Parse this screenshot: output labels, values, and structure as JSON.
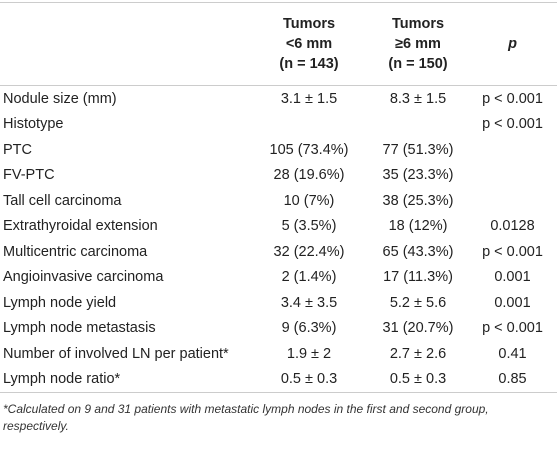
{
  "table": {
    "header": [
      null,
      [
        "Tumors",
        "<6 mm",
        "(n = 143)"
      ],
      [
        "Tumors",
        "≥6 mm",
        "(n = 150)"
      ],
      [
        "p"
      ]
    ],
    "rows": [
      [
        "Nodule size (mm)",
        "3.1 ± 1.5",
        "8.3 ± 1.5",
        "p < 0.001"
      ],
      [
        "Histotype",
        null,
        null,
        "p < 0.001"
      ],
      [
        "PTC",
        "105 (73.4%)",
        "77 (51.3%)",
        null
      ],
      [
        "FV-PTC",
        "28 (19.6%)",
        "35 (23.3%)",
        null
      ],
      [
        "Tall cell carcinoma",
        "10 (7%)",
        "38 (25.3%)",
        null
      ],
      [
        "Extrathyroidal extension",
        "5 (3.5%)",
        "18 (12%)",
        "0.0128"
      ],
      [
        "Multicentric carcinoma",
        "32 (22.4%)",
        "65 (43.3%)",
        "p < 0.001"
      ],
      [
        "Angioinvasive carcinoma",
        "2 (1.4%)",
        "17 (11.3%)",
        "0.001"
      ],
      [
        "Lymph node yield",
        "3.4 ± 3.5",
        "5.2 ± 5.6",
        "0.001"
      ],
      [
        "Lymph node metastasis",
        "9 (6.3%)",
        "31 (20.7%)",
        "p < 0.001"
      ],
      [
        "Number of involved LN per patient*",
        "1.9 ± 2",
        "2.7 ± 2.6",
        "0.41"
      ],
      [
        "Lymph node ratio*",
        "0.5 ± 0.3",
        "0.5 ± 0.3",
        "0.85"
      ]
    ],
    "footnote": "*Calculated on 9 and 31 patients with metastatic lymph nodes in the first and second group, respectively."
  }
}
